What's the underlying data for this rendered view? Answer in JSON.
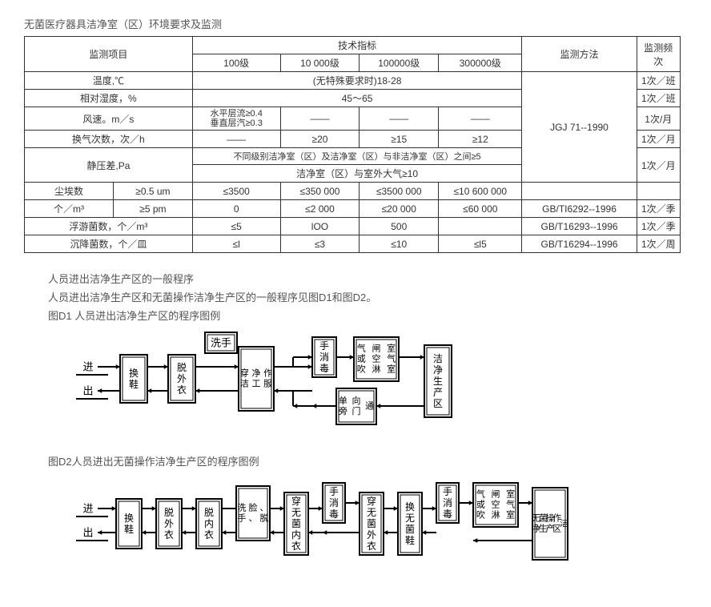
{
  "doc_title": "无菌医疗器具洁净室（区）环境要求及监测",
  "table": {
    "headers": {
      "item": "监测项目",
      "tech": "技术指标",
      "l100": "100级",
      "l10000": "10 000级",
      "l100000": "100000级",
      "l300000": "300000级",
      "method": "监测方法",
      "freq": "监测频次"
    },
    "rows": {
      "temp_label": "温度,℃",
      "temp_val": "(无特殊要求时)18-28",
      "temp_freq": "1次／班",
      "humid_label": "相对湿度，%",
      "humid_val": "45～65",
      "humid_freq": "1次／班",
      "wind_label": "风速。m／s",
      "wind_100": "水平层流≥0.4\n垂直层汽≥0.3",
      "dash": "——",
      "wind_freq": "1次/月",
      "ach_label": "换气次数，次／h",
      "ach_10000": "≥20",
      "ach_100000": "≥15",
      "ach_300000": "≥12",
      "ach_freq": "1次／月",
      "method_jgj": "JGJ 71--1990",
      "press_label": "静压差,Pa",
      "press_row1": "不同级别洁净室（区）及洁净室（区）与非洁净室（区）之间≥5",
      "press_row2": "洁净室（区）与室外大气≥10",
      "press_freq": "1次／月",
      "dust_label": "尘埃数",
      "dust_unit": "个／m³",
      "dust_05": "≥0.5 um",
      "dust_5": "≥5 pm",
      "d05_100": "≤3500",
      "d05_10000": "≤350 000",
      "d05_100000": "≤3500 000",
      "d05_300000": "≤10 600 000",
      "d5_100": "0",
      "d5_10000": "≤2 000",
      "d5_100000": "≤20 000",
      "d5_300000": "≤60 000",
      "dust_method": "GB/TI6292--1996",
      "dust_freq": "1次／季",
      "float_label": "浮游菌数，个／m³",
      "f_100": "≤5",
      "f_10000": "lOO",
      "f_100000": "500",
      "f_300000": "",
      "float_method": "GB/T16293--1996",
      "float_freq": "1次／季",
      "settle_label": "沉降菌数，个／皿",
      "s_100": "≤l",
      "s_10000": "≤3",
      "s_100000": "≤10",
      "s_300000": "≤l5",
      "settle_method": "GB/T16294--1996",
      "settle_freq": "1次／周"
    }
  },
  "section": {
    "h1": "人员进出洁净生产区的一般程序",
    "p1": "人员进出洁净生产区和无菌操作洁净生产区的一般程序见图D1和图D2。",
    "fig1": "图D1 人员进出洁净生产区的程序图例",
    "fig2": "图D2人员进出无菌操作洁净生产区的程序图例"
  },
  "d1": {
    "in": "进",
    "out": "出",
    "b1": "换鞋",
    "b2": "脱外衣",
    "b3": "洗手",
    "b4": "穿洁净工作服",
    "b5": "手消毒",
    "b6": "气闸室或空气吹淋室",
    "b7": "单向通旁门",
    "b8": "洁净生产区"
  },
  "d2": {
    "in": "进",
    "out": "出",
    "b1": "换鞋",
    "b2": "脱外衣",
    "b3": "脱内衣",
    "b4": "洗脸、手、脱",
    "b5": "穿无菌内衣",
    "b6": "手消毒",
    "b7": "穿无菌外衣",
    "b8": "换无菌鞋",
    "b9": "手消毒",
    "b10": "气闸室或空气吹淋室",
    "b11": "无菌操作洁净生产区"
  },
  "svg_style": {
    "box_stroke": "#000000",
    "box_stroke_width": 2,
    "box_fill": "#ffffff",
    "line_stroke": "#000000",
    "line_width": 2,
    "font_family": "SimSun, serif",
    "font_size_h": 13,
    "font_size_v": 12
  }
}
